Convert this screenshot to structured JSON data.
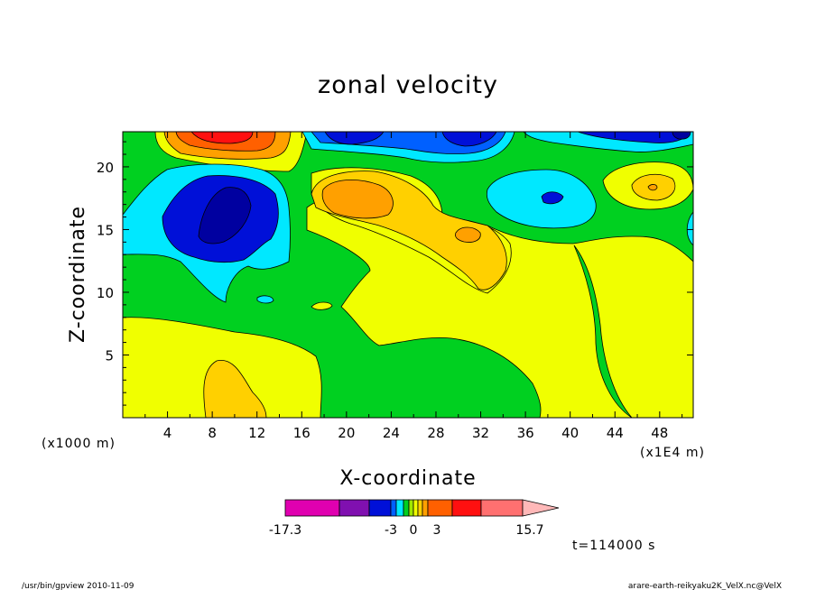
{
  "chart_data": {
    "type": "heatmap",
    "title": "zonal velocity",
    "xlabel": "X-coordinate",
    "ylabel": "Z-coordinate",
    "x_unit_left": "(x1000 m)",
    "x_unit_right": "(x1E4 m)",
    "xlim": [
      0,
      51
    ],
    "ylim": [
      0,
      22.8
    ],
    "x_ticks": [
      "4",
      "8",
      "12",
      "16",
      "20",
      "24",
      "28",
      "32",
      "36",
      "40",
      "44",
      "48"
    ],
    "y_ticks": [
      "5",
      "10",
      "15",
      "20"
    ],
    "colorbar": {
      "labels": [
        "-17.3",
        "-3",
        "0",
        "3",
        "15.7"
      ],
      "colors": [
        "#e000b0",
        "#8010b0",
        "#0010d8",
        "#0060ff",
        "#00e8ff",
        "#00d020",
        "#a0e800",
        "#f0ff00",
        "#ffd000",
        "#ffa000",
        "#ff6000",
        "#ff1010",
        "#ff7070",
        "#ffb8b8"
      ]
    },
    "time_label": "t=114000 s",
    "footer_left": "/usr/bin/gpview   2010-11-09",
    "footer_right": "arare-earth-reikyaku2K_VelX.nc@VelX"
  }
}
